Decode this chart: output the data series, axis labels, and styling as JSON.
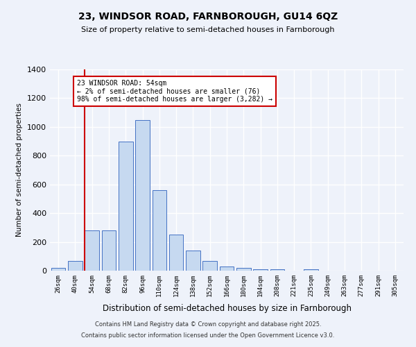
{
  "title1": "23, WINDSOR ROAD, FARNBOROUGH, GU14 6QZ",
  "title2": "Size of property relative to semi-detached houses in Farnborough",
  "xlabel": "Distribution of semi-detached houses by size in Farnborough",
  "ylabel": "Number of semi-detached properties",
  "categories": [
    "26sqm",
    "40sqm",
    "54sqm",
    "68sqm",
    "82sqm",
    "96sqm",
    "110sqm",
    "124sqm",
    "138sqm",
    "152sqm",
    "166sqm",
    "180sqm",
    "194sqm",
    "208sqm",
    "221sqm",
    "235sqm",
    "249sqm",
    "263sqm",
    "277sqm",
    "291sqm",
    "305sqm"
  ],
  "values": [
    20,
    70,
    280,
    280,
    900,
    1050,
    560,
    250,
    140,
    70,
    30,
    20,
    10,
    10,
    0,
    8,
    0,
    0,
    0,
    0,
    0
  ],
  "bar_color": "#c6d9f0",
  "bar_edge_color": "#4472c4",
  "background_color": "#eef2fa",
  "grid_color": "#ffffff",
  "red_line_index": 2,
  "annotation_text": "23 WINDSOR ROAD: 54sqm\n← 2% of semi-detached houses are smaller (76)\n98% of semi-detached houses are larger (3,282) →",
  "annotation_color": "#cc0000",
  "ylim": [
    0,
    1400
  ],
  "yticks": [
    0,
    200,
    400,
    600,
    800,
    1000,
    1200,
    1400
  ],
  "footer1": "Contains HM Land Registry data © Crown copyright and database right 2025.",
  "footer2": "Contains public sector information licensed under the Open Government Licence v3.0."
}
